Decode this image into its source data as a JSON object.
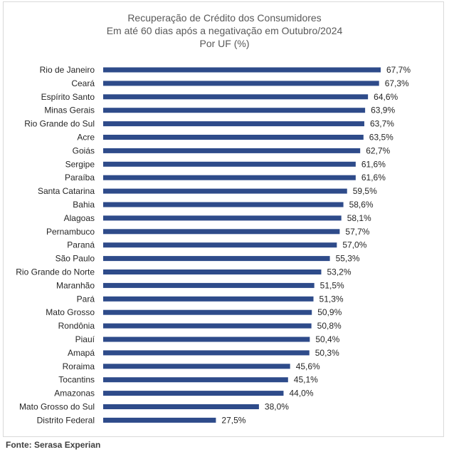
{
  "chart_data": {
    "type": "bar",
    "orientation": "horizontal",
    "title_lines": [
      "Recuperação de Crédito dos Consumidores",
      "Em até 60 dias após a negativação em Outubro/2024",
      "Por UF (%)"
    ],
    "categories": [
      "Rio de Janeiro",
      "Ceará",
      "Espírito Santo",
      "Minas Gerais",
      "Rio Grande do Sul",
      "Acre",
      "Goiás",
      "Sergipe",
      "Paraíba",
      "Santa Catarina",
      "Bahia",
      "Alagoas",
      "Pernambuco",
      "Paraná",
      "São Paulo",
      "Rio Grande do Norte",
      "Maranhão",
      "Pará",
      "Mato Grosso",
      "Rondônia",
      "Piauí",
      "Amapá",
      "Roraima",
      "Tocantins",
      "Amazonas",
      "Mato Grosso do Sul",
      "Distrito Federal"
    ],
    "values": [
      67.7,
      67.3,
      64.6,
      63.9,
      63.7,
      63.5,
      62.7,
      61.6,
      61.6,
      59.5,
      58.6,
      58.1,
      57.7,
      57.0,
      55.3,
      53.2,
      51.5,
      51.3,
      50.9,
      50.8,
      50.4,
      50.3,
      45.6,
      45.1,
      44.0,
      38.0,
      27.5
    ],
    "value_labels": [
      "67,7%",
      "67,3%",
      "64,6%",
      "63,9%",
      "63,7%",
      "63,5%",
      "62,7%",
      "61,6%",
      "61,6%",
      "59,5%",
      "58,6%",
      "58,1%",
      "57,7%",
      "57,0%",
      "55,3%",
      "53,2%",
      "51,5%",
      "51,3%",
      "50,9%",
      "50,8%",
      "50,4%",
      "50,3%",
      "45,6%",
      "45,1%",
      "44,0%",
      "38,0%",
      "27,5%"
    ],
    "xlim": [
      0,
      67.7
    ],
    "grid": false,
    "legend": "none",
    "bar_color": "#2e4b8a"
  },
  "source": "Fonte: Serasa Experian"
}
